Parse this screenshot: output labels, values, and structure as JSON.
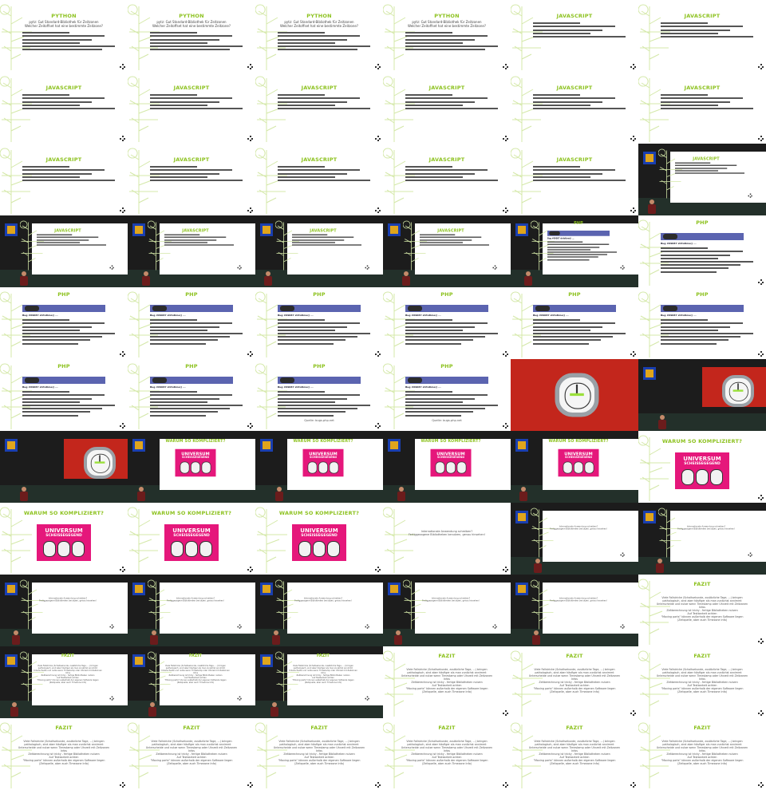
{
  "sheet": {
    "python_title": "PYTHON",
    "python_sub_1": "pytz: Gut Standard-Bibliothek für Zeitzonen",
    "python_sub_2": "Welcher Zeitoffset hat eine bestimmte Zeitzone?",
    "javascript_title": "JAVASCRIPT",
    "php_title": "PHP",
    "php_bug": "Bug #69087 strtotime() ...",
    "php_source": "Quelle: bugs.php.net",
    "warum_title": "WARUM SO KOMPLIZIERT?",
    "poster_line1": "UNIVERSUM",
    "poster_line2": "SCHEISSEGEGEND",
    "question_1": "Internationale Anwendung schreiben?",
    "question_2": "Fertiggezogene Bibliotheken benutzen, genau hinsehen!",
    "fazit_title": "FAZIT",
    "fazit_1": "Viele Fallstricke (Schaltsekunde, zusätzliche Tage, ...) bringen",
    "fazit_2": "pathologisch, sind aber häufiger als man zunächst annimmt",
    "fazit_3": "Unterscheide und nutze wenn Timestamp oder Uhrzeit mit Zeitzonen Infos",
    "fazit_4": "Zeitberechnung ist tricky - fertige Bibliotheken nutzen",
    "fazit_5": "Auf Testbarkeit achten",
    "fazit_6": "\"Moving parts\" können außerhalb der eigenen Software liegen",
    "fazit_7": "(Zeitquelle, aber auch Timezone Info)"
  },
  "tiles": [
    "py",
    "py",
    "py",
    "py",
    "js",
    "js",
    "js",
    "js",
    "js",
    "js",
    "js",
    "js",
    "js",
    "js",
    "js",
    "js",
    "js",
    "camjs",
    "camjs",
    "camjs",
    "camjs",
    "camjs",
    "camphp",
    "php",
    "php",
    "php",
    "php",
    "php",
    "php",
    "php",
    "php",
    "phpdate",
    "phpsrc",
    "phpsrc",
    "watch",
    "camwatch",
    "camwatch",
    "campost",
    "campost",
    "campost",
    "campost",
    "warum",
    "warum",
    "warum",
    "warum",
    "q",
    "camq",
    "camq",
    "camq",
    "camq",
    "camq",
    "camq",
    "camq",
    "fz",
    "camfz",
    "camfz",
    "camfz",
    "fz",
    "fz",
    "fz",
    "fz",
    "fz",
    "fz",
    "fz",
    "fz",
    "fz"
  ],
  "colors": {
    "accent": "#8dc21f",
    "dark": "#1c1c1c",
    "poster": "#e5177b",
    "php_bar": "#5b64b0"
  },
  "icons": [
    "tree-decoration-icon",
    "nav-arrows-icon",
    "conference-logo-icon",
    "stopwatch-icon"
  ]
}
